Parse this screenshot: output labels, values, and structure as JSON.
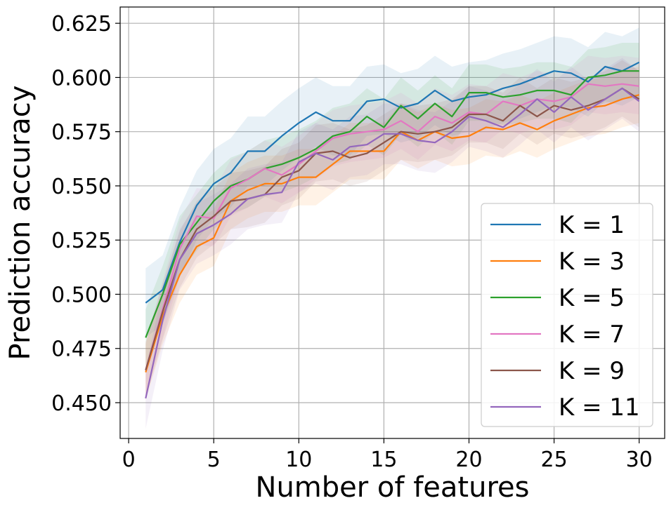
{
  "chart_data": {
    "type": "line",
    "xlabel": "Number of features",
    "ylabel": "Prediction accuracy",
    "xlim": [
      -0.5,
      31.5
    ],
    "ylim": [
      0.4335,
      0.6325
    ],
    "xticks": [
      0,
      5,
      10,
      15,
      20,
      25,
      30
    ],
    "xtick_labels": [
      "0",
      "5",
      "10",
      "15",
      "20",
      "25",
      "30"
    ],
    "yticks": [
      0.45,
      0.475,
      0.5,
      0.525,
      0.55,
      0.575,
      0.6,
      0.625
    ],
    "ytick_labels": [
      "0.450",
      "0.475",
      "0.500",
      "0.525",
      "0.550",
      "0.575",
      "0.600",
      "0.625"
    ],
    "grid": true,
    "legend_position": "lower-right",
    "x": [
      1,
      2,
      3,
      4,
      5,
      6,
      7,
      8,
      9,
      10,
      11,
      12,
      13,
      14,
      15,
      16,
      17,
      18,
      19,
      20,
      21,
      22,
      23,
      24,
      25,
      26,
      27,
      28,
      29,
      30
    ],
    "series": [
      {
        "name": "K = 1",
        "color": "#1f77b4",
        "band": 0.016,
        "values": [
          0.496,
          0.502,
          0.524,
          0.541,
          0.551,
          0.556,
          0.566,
          0.566,
          0.573,
          0.579,
          0.584,
          0.58,
          0.58,
          0.589,
          0.59,
          0.586,
          0.588,
          0.594,
          0.589,
          0.591,
          0.592,
          0.595,
          0.597,
          0.6,
          0.603,
          0.602,
          0.598,
          0.605,
          0.603,
          0.607
        ]
      },
      {
        "name": "K = 3",
        "color": "#ff7f0e",
        "band": 0.013,
        "values": [
          0.464,
          0.49,
          0.509,
          0.522,
          0.526,
          0.543,
          0.548,
          0.551,
          0.551,
          0.554,
          0.554,
          0.56,
          0.566,
          0.566,
          0.566,
          0.575,
          0.571,
          0.575,
          0.572,
          0.573,
          0.577,
          0.576,
          0.579,
          0.576,
          0.58,
          0.583,
          0.586,
          0.587,
          0.59,
          0.592
        ]
      },
      {
        "name": "K = 5",
        "color": "#2ca02c",
        "band": 0.013,
        "values": [
          0.48,
          0.5,
          0.523,
          0.533,
          0.543,
          0.55,
          0.553,
          0.558,
          0.56,
          0.563,
          0.567,
          0.573,
          0.575,
          0.582,
          0.577,
          0.587,
          0.581,
          0.588,
          0.582,
          0.593,
          0.593,
          0.591,
          0.592,
          0.594,
          0.594,
          0.592,
          0.6,
          0.601,
          0.603,
          0.603
        ]
      },
      {
        "name": "K = 7",
        "color": "#e377c2",
        "band": 0.013,
        "values": [
          0.465,
          0.493,
          0.521,
          0.536,
          0.535,
          0.549,
          0.553,
          0.558,
          0.555,
          0.56,
          0.566,
          0.572,
          0.574,
          0.575,
          0.576,
          0.58,
          0.575,
          0.582,
          0.579,
          0.584,
          0.583,
          0.589,
          0.587,
          0.59,
          0.589,
          0.591,
          0.597,
          0.596,
          0.597,
          0.596
        ]
      },
      {
        "name": "K = 9",
        "color": "#8c564b",
        "band": 0.013,
        "values": [
          0.465,
          0.492,
          0.516,
          0.53,
          0.536,
          0.543,
          0.544,
          0.546,
          0.554,
          0.557,
          0.565,
          0.566,
          0.563,
          0.565,
          0.57,
          0.575,
          0.574,
          0.575,
          0.577,
          0.583,
          0.583,
          0.58,
          0.587,
          0.582,
          0.587,
          0.585,
          0.587,
          0.59,
          0.595,
          0.59
        ]
      },
      {
        "name": "K = 11",
        "color": "#9467bd",
        "band": 0.014,
        "values": [
          0.452,
          0.488,
          0.516,
          0.528,
          0.532,
          0.537,
          0.544,
          0.546,
          0.547,
          0.561,
          0.565,
          0.562,
          0.568,
          0.569,
          0.574,
          0.574,
          0.571,
          0.57,
          0.575,
          0.582,
          0.58,
          0.577,
          0.583,
          0.59,
          0.584,
          0.591,
          0.585,
          0.59,
          0.595,
          0.589
        ]
      }
    ]
  }
}
